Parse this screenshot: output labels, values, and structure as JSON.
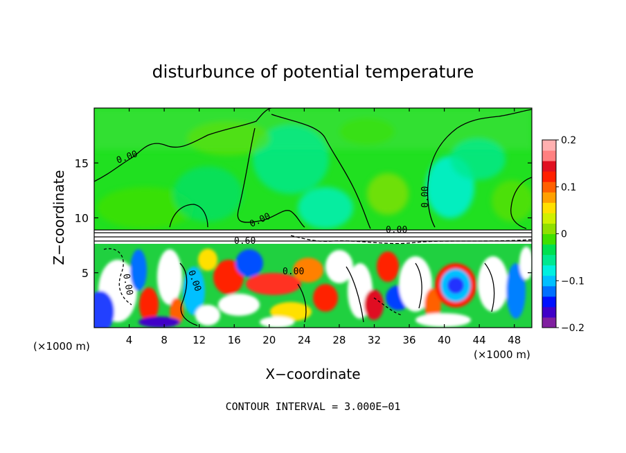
{
  "chart_data": {
    "type": "heatmap",
    "title": "disturbunce of potential temperature",
    "xlabel": "X−coordinate",
    "ylabel": "Z−coordinate",
    "x_unit_left": "(×1000 m)",
    "x_unit_right": "(×1000 m)",
    "xlim": [
      0,
      50
    ],
    "ylim": [
      0,
      20
    ],
    "x_ticks": [
      4,
      8,
      12,
      16,
      20,
      24,
      28,
      32,
      36,
      40,
      44,
      48
    ],
    "x_tick_labels": [
      "4",
      "8",
      "12",
      "16",
      "20",
      "24",
      "28",
      "32",
      "36",
      "40",
      "44",
      "48"
    ],
    "y_ticks": [
      5,
      10,
      15
    ],
    "y_tick_labels": [
      "5",
      "10",
      "15"
    ],
    "contour_labels": [
      "0.00",
      "0.00",
      "0.00",
      "0.00",
      "0.60",
      "0.00",
      "0.00",
      "0.00"
    ],
    "colorbar": {
      "range": [
        -0.2,
        0.2
      ],
      "ticks": [
        0.2,
        0.1,
        0,
        -0.1,
        -0.2
      ],
      "tick_labels": [
        "0.2",
        "0.1",
        "0",
        "−0.1",
        "−0.2"
      ],
      "colors": [
        "#8020a0",
        "#4000c8",
        "#0010ff",
        "#0070ff",
        "#00c0ff",
        "#00f0e0",
        "#00e890",
        "#00e050",
        "#40e000",
        "#90e000",
        "#d0f000",
        "#ffe000",
        "#ffa000",
        "#ff6000",
        "#ff2000",
        "#e01020",
        "#ff8080",
        "#ffb0b0"
      ]
    },
    "grid": false,
    "legend": "colorbar right"
  },
  "footer": {
    "contour_interval": "CONTOUR INTERVAL = 3.000E−01"
  }
}
